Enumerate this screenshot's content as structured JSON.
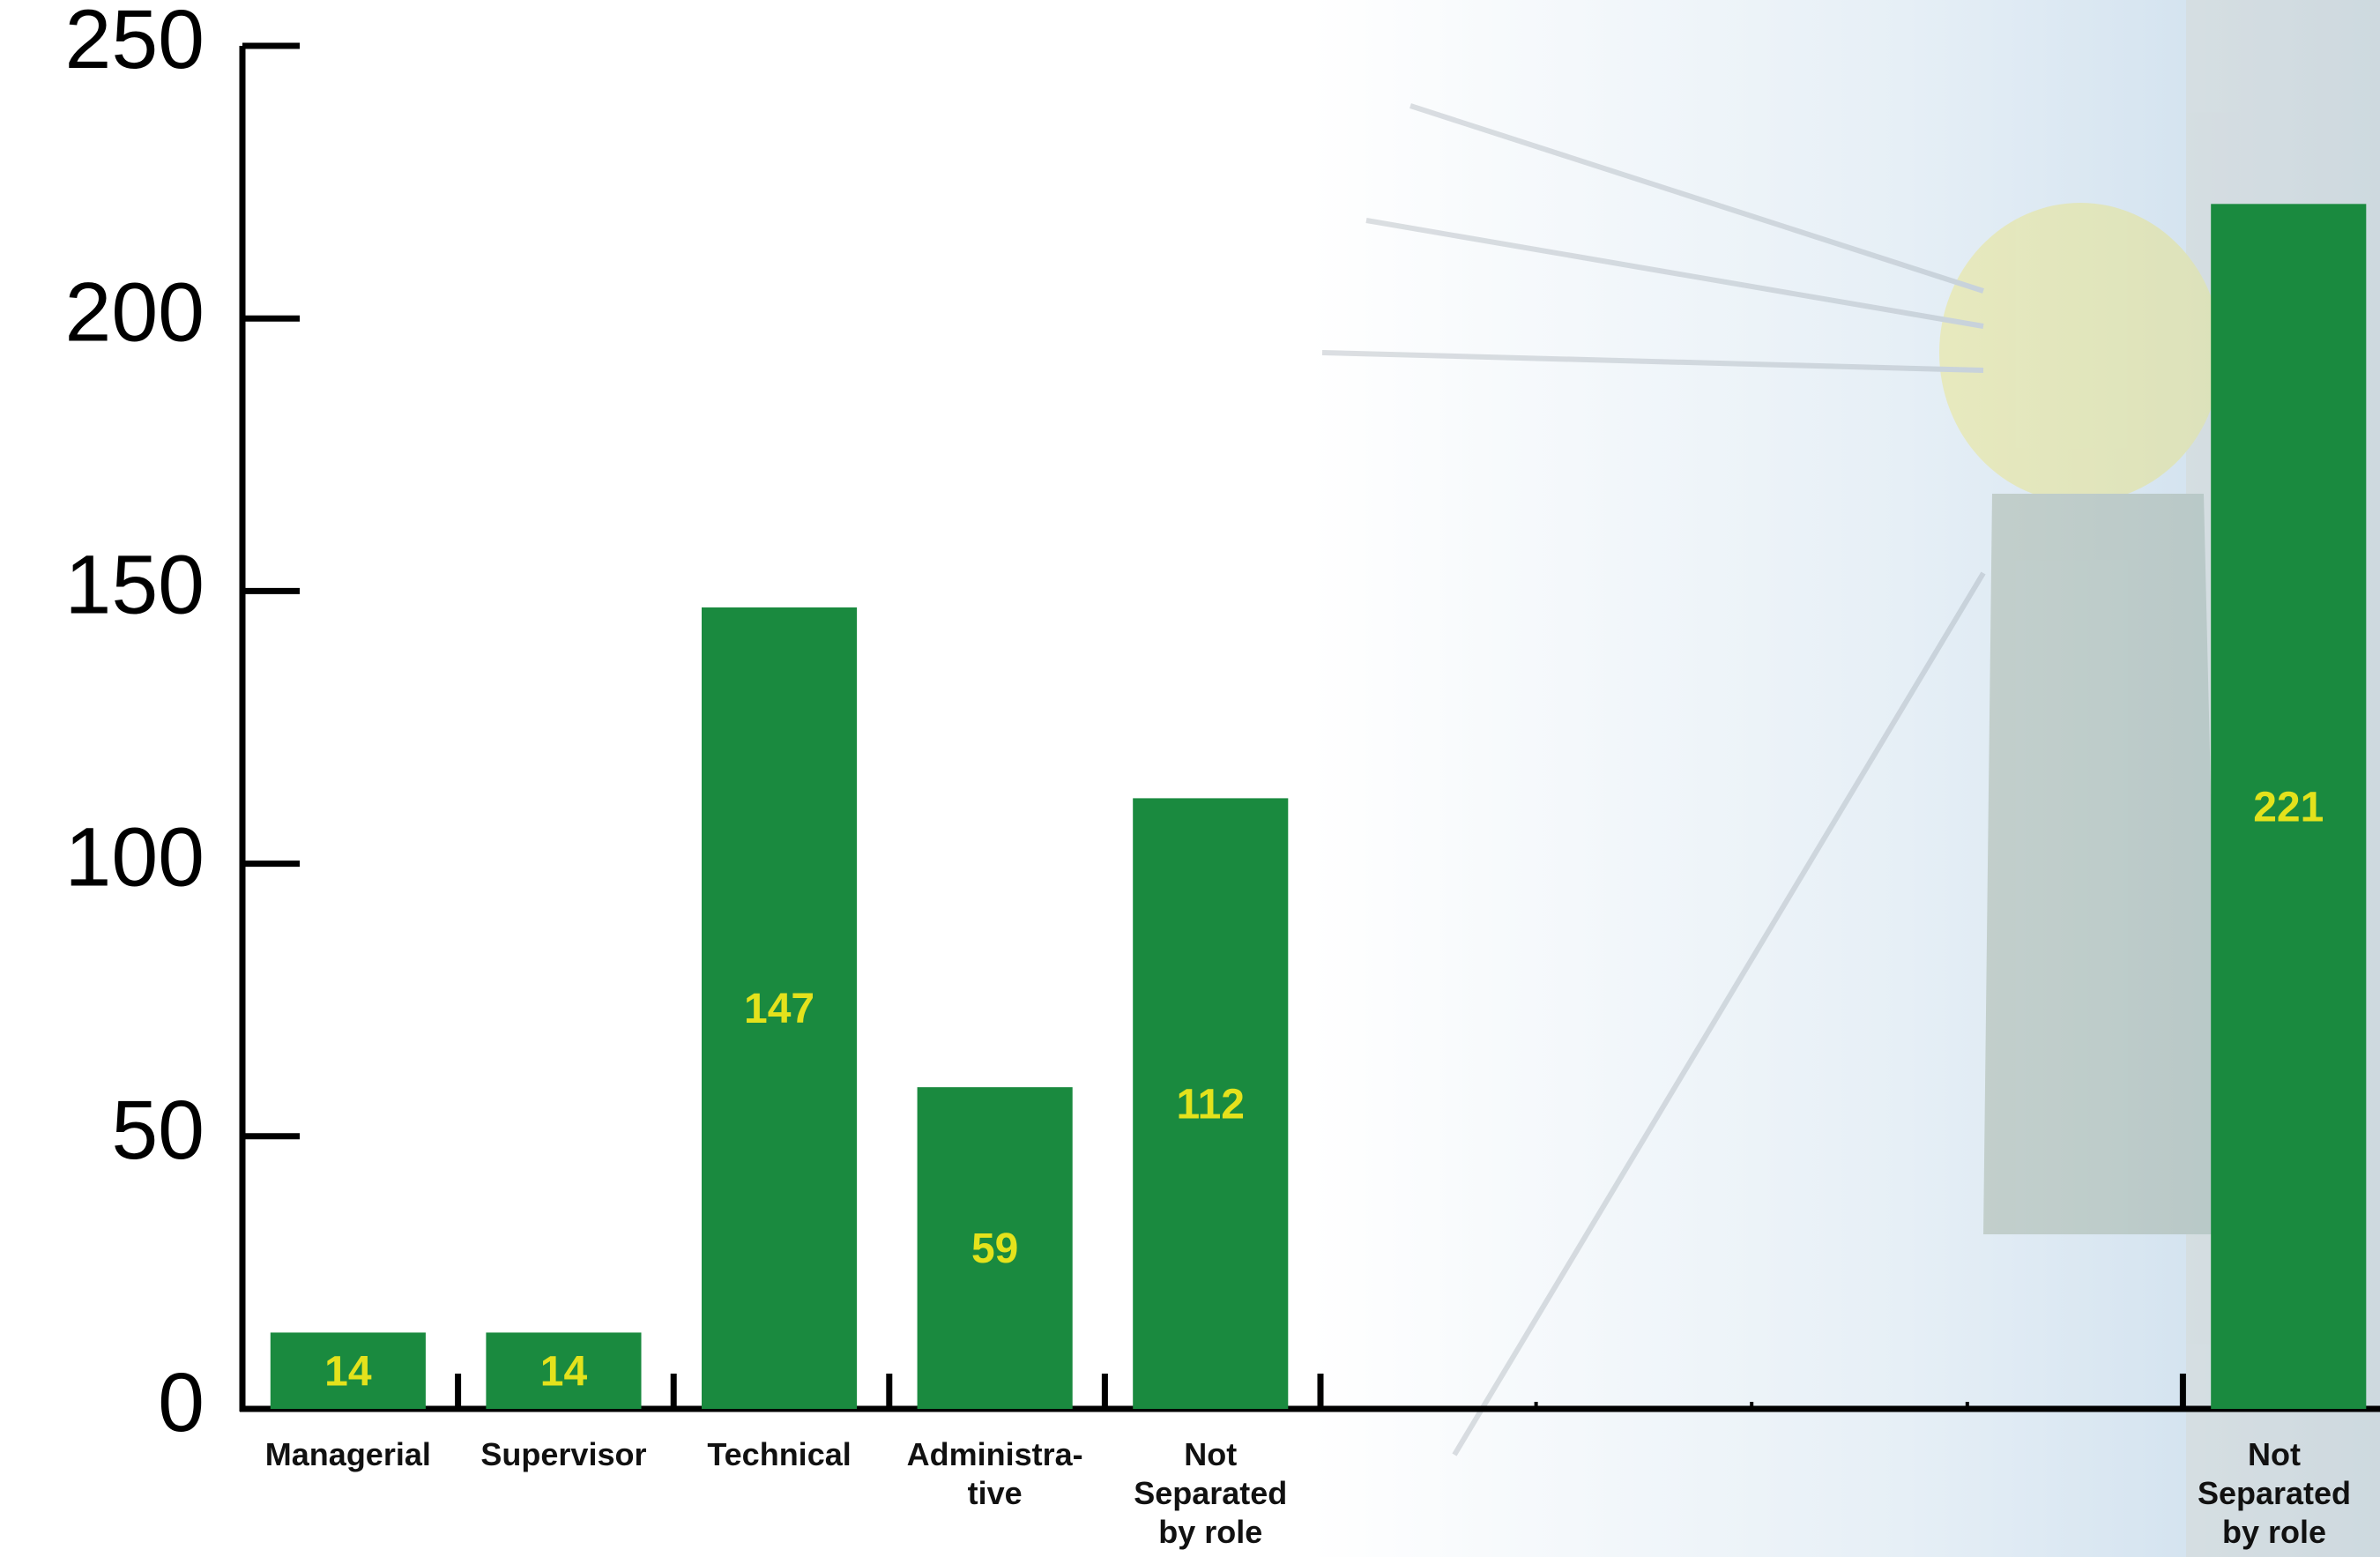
{
  "chart_data": {
    "type": "bar",
    "categories": [
      "Managerial",
      "Supervisor",
      "Technical",
      "Administra-\ntive",
      "Not\nSeparated\nby role",
      null,
      null,
      null,
      null,
      "Not\nSeparated\nby role"
    ],
    "values": [
      14,
      14,
      147,
      59,
      112,
      null,
      null,
      null,
      null,
      221
    ],
    "color": "#1a8a3f",
    "label_color": "#e4e21c",
    "ylim": [
      0,
      250
    ],
    "yticks": [
      0,
      50,
      100,
      150,
      200,
      250
    ],
    "grid": false
  }
}
